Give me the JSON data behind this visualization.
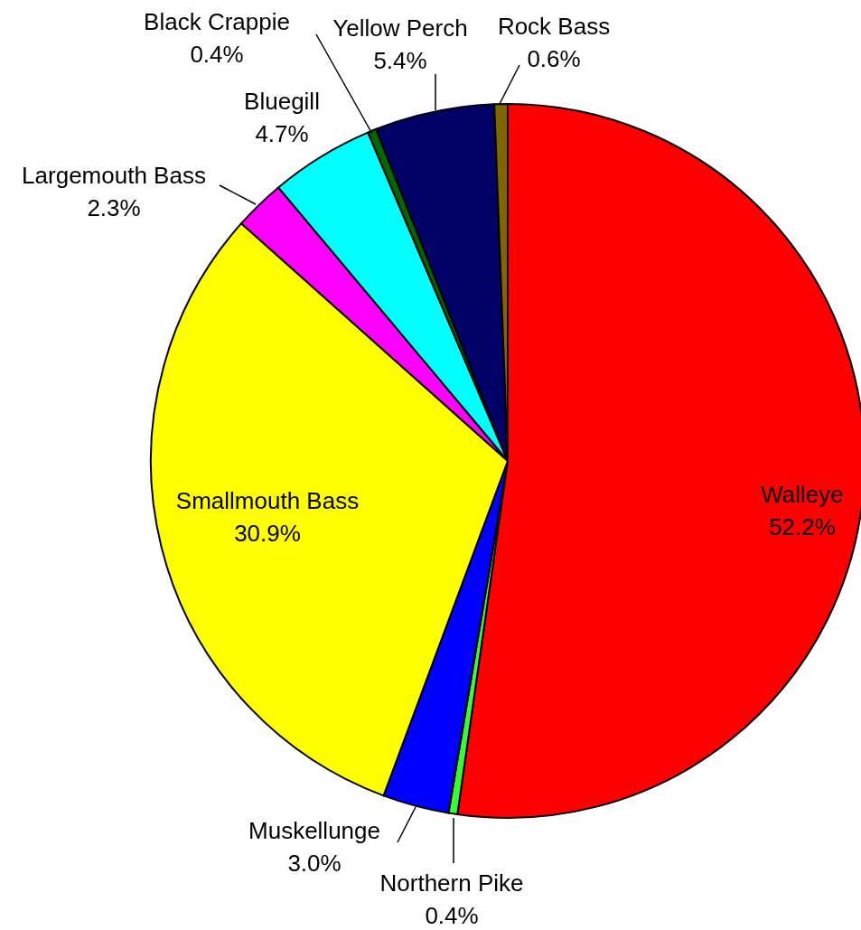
{
  "chart_data": {
    "type": "pie",
    "categories": [
      "Walleye",
      "Northern Pike",
      "Muskellunge",
      "Smallmouth Bass",
      "Largemouth Bass",
      "Bluegill",
      "Black Crappie",
      "Yellow Perch",
      "Rock Bass"
    ],
    "values": [
      52.2,
      0.4,
      3.0,
      30.9,
      2.3,
      4.7,
      0.4,
      5.4,
      0.6
    ],
    "value_labels": [
      "52.2%",
      "0.4%",
      "3.0%",
      "30.9%",
      "2.3%",
      "4.7%",
      "0.4%",
      "5.4%",
      "0.6%"
    ],
    "colors": [
      "#ff0000",
      "#33ff33",
      "#0000ff",
      "#ffff00",
      "#ff00ff",
      "#00ffff",
      "#006600",
      "#000066",
      "#7f6600"
    ]
  }
}
